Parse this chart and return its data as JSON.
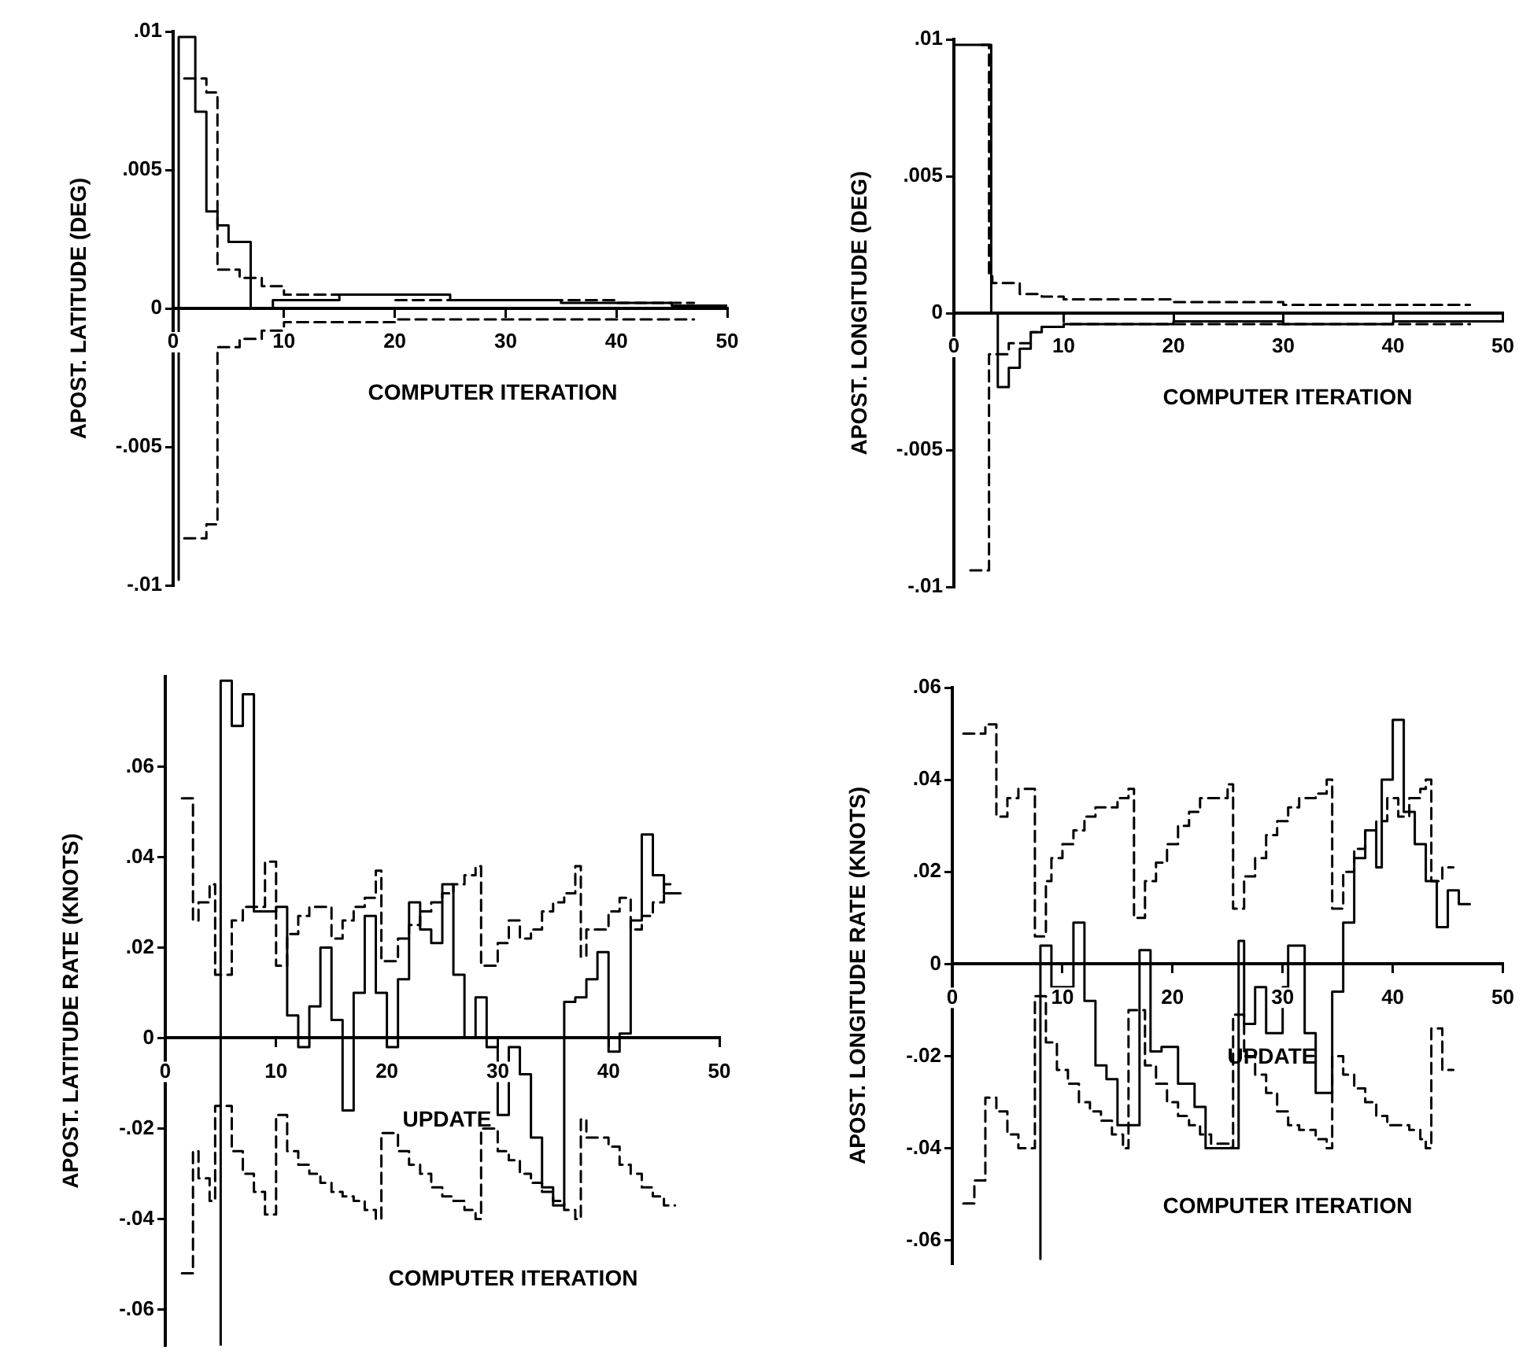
{
  "chart_data": [
    {
      "type": "step",
      "xlabel": "COMPUTER ITERATION",
      "ylabel": "APOST. LATITUDE (DEG)",
      "xlim": [
        0,
        50
      ],
      "ylim": [
        -0.01,
        0.01
      ],
      "xticks": [
        0,
        10,
        20,
        30,
        40,
        50
      ],
      "yticks": [
        {
          "value": -0.01,
          "label": "-.01"
        },
        {
          "value": -0.005,
          "label": "-.005"
        },
        {
          "value": 0,
          "label": "0"
        },
        {
          "value": 0.005,
          "label": ".005"
        },
        {
          "value": 0.01,
          "label": ".01"
        }
      ],
      "series": [
        {
          "color": "#000000",
          "line_style": "solid",
          "x": [
            0.5,
            0.5,
            2,
            3,
            4,
            5,
            7,
            9,
            15,
            25,
            35,
            45,
            50
          ],
          "values": [
            -0.0098,
            0.0098,
            0.0071,
            0.0035,
            0.003,
            0.0024,
            0,
            0.0003,
            0.0005,
            0.0003,
            0.0002,
            0.0001,
            0
          ]
        },
        {
          "color": "#000000",
          "line_style": "dashed",
          "x": [
            1,
            3,
            4,
            6,
            8,
            10,
            20,
            30,
            40,
            47
          ],
          "values": [
            0.0083,
            0.0078,
            0.0014,
            0.0011,
            0.0008,
            0.0005,
            0.0003,
            0.0003,
            0.0002,
            0.0002
          ]
        },
        {
          "color": "#000000",
          "line_style": "dashed",
          "x": [
            1,
            3,
            4,
            6,
            8,
            10,
            20,
            30,
            40,
            47
          ],
          "values": [
            -0.0083,
            -0.0078,
            -0.0014,
            -0.0011,
            -0.0008,
            -0.0005,
            -0.0004,
            -0.0004,
            -0.0004,
            -0.0004
          ]
        }
      ]
    },
    {
      "type": "step",
      "xlabel": "COMPUTER ITERATION",
      "ylabel": "APOST. LONGITUDE (DEG)",
      "xlim": [
        0,
        50
      ],
      "ylim": [
        -0.01,
        0.01
      ],
      "xticks": [
        0,
        10,
        20,
        30,
        40,
        50
      ],
      "yticks": [
        {
          "value": -0.01,
          "label": "-.01"
        },
        {
          "value": -0.005,
          "label": "-.005"
        },
        {
          "value": 0,
          "label": "0"
        },
        {
          "value": 0.005,
          "label": ".005"
        },
        {
          "value": 0.01,
          "label": ".01"
        }
      ],
      "series": [
        {
          "color": "#000000",
          "line_style": "solid",
          "x": [
            0,
            0,
            3.4,
            4,
            5,
            6,
            7,
            8,
            10,
            20,
            30,
            40,
            50
          ],
          "values": [
            -0.0098,
            0.0098,
            0,
            -0.0027,
            -0.002,
            -0.0013,
            -0.0007,
            -0.0005,
            -0.0004,
            -0.0003,
            -0.0004,
            -0.0003,
            -0.0002
          ]
        },
        {
          "color": "#000000",
          "line_style": "dashed",
          "x": [
            2.5,
            3.2,
            3.5,
            6,
            8,
            10,
            20,
            30,
            47
          ],
          "values": [
            0.0098,
            0.0014,
            0.0011,
            0.0007,
            0.0006,
            0.0005,
            0.0004,
            0.0003,
            0.0003
          ]
        },
        {
          "color": "#000000",
          "line_style": "dashed",
          "x": [
            1.5,
            3.2,
            5,
            7,
            8,
            10,
            20,
            30,
            47
          ],
          "values": [
            -0.0094,
            -0.0015,
            -0.0011,
            -0.0007,
            -0.0005,
            -0.0004,
            -0.0004,
            -0.0004,
            -0.0004
          ]
        }
      ]
    },
    {
      "type": "step",
      "xlabel": "COMPUTER ITERATION",
      "ylabel": "APOST. LATITUDE RATE (KNOTS)",
      "xlim": [
        0,
        50
      ],
      "ylim": [
        -0.068,
        0.08
      ],
      "xticks": [
        0,
        10,
        20,
        30,
        40,
        50
      ],
      "yticks": [
        {
          "value": -0.06,
          "label": "-.06"
        },
        {
          "value": -0.04,
          "label": "-.04"
        },
        {
          "value": -0.02,
          "label": "-.02"
        },
        {
          "value": 0,
          "label": "0"
        },
        {
          "value": 0.02,
          "label": ".02"
        },
        {
          "value": 0.04,
          "label": ".04"
        },
        {
          "value": 0.06,
          "label": ".06"
        }
      ],
      "annotations": [
        "UPDATE"
      ],
      "series": [
        {
          "color": "#000000",
          "line_style": "solid",
          "x": [
            5,
            5,
            6,
            7,
            8,
            10,
            11,
            12,
            13,
            14,
            15,
            16,
            17,
            18,
            19,
            20,
            21,
            22,
            23,
            24,
            25,
            26,
            27,
            28,
            29,
            30,
            31,
            32,
            33,
            34,
            35,
            36,
            37,
            38,
            39,
            40,
            41,
            42,
            43,
            44,
            45,
            46.5
          ],
          "values": [
            -0.068,
            0.079,
            0.069,
            0.076,
            0.028,
            0.029,
            0.005,
            -0.002,
            0.007,
            0.02,
            0.004,
            -0.016,
            0.01,
            0.027,
            0.01,
            -0.002,
            0.013,
            0.03,
            0.024,
            0.021,
            0.034,
            0.014,
            0,
            0.009,
            -0.002,
            -0.017,
            -0.002,
            -0.008,
            -0.022,
            -0.033,
            -0.037,
            0.008,
            0.009,
            0.013,
            0.019,
            -0.003,
            0.001,
            0.026,
            0.045,
            0.036,
            0.032,
            0.032
          ]
        },
        {
          "color": "#000000",
          "line_style": "dashed",
          "x": [
            1.5,
            2.5,
            3,
            4,
            4.5,
            6,
            7,
            9,
            10,
            11,
            12,
            13,
            15,
            16,
            17,
            18,
            19,
            19.5,
            21,
            22,
            23,
            24,
            25,
            26,
            27,
            28,
            28.5,
            30,
            31,
            32,
            33,
            34,
            35,
            36,
            37,
            37.5,
            38,
            40,
            41,
            42,
            43,
            44,
            45,
            46
          ],
          "values": [
            0.053,
            0.026,
            0.03,
            0.034,
            0.014,
            0.026,
            0.029,
            0.039,
            0.016,
            0.023,
            0.027,
            0.029,
            0.022,
            0.026,
            0.029,
            0.031,
            0.037,
            0.017,
            0.022,
            0.025,
            0.028,
            0.03,
            0.032,
            0.034,
            0.036,
            0.038,
            0.016,
            0.021,
            0.026,
            0.022,
            0.024,
            0.028,
            0.03,
            0.032,
            0.038,
            0.018,
            0.024,
            0.028,
            0.031,
            0.024,
            0.027,
            0.03,
            0.034,
            0.034
          ]
        },
        {
          "color": "#000000",
          "line_style": "dashed",
          "x": [
            1.5,
            2.5,
            3,
            4,
            4.5,
            6,
            7,
            8,
            9,
            10,
            11,
            12,
            13,
            14,
            15,
            16,
            17,
            18,
            19,
            19.5,
            21,
            22,
            23,
            24,
            25,
            26,
            27,
            28,
            28.5,
            30,
            31,
            32,
            33,
            34,
            35,
            36,
            37,
            37.5,
            38,
            40,
            41,
            42,
            43,
            44,
            45,
            46
          ],
          "values": [
            -0.052,
            -0.025,
            -0.031,
            -0.036,
            -0.015,
            -0.025,
            -0.03,
            -0.034,
            -0.039,
            -0.017,
            -0.025,
            -0.028,
            -0.03,
            -0.032,
            -0.034,
            -0.035,
            -0.036,
            -0.038,
            -0.04,
            -0.021,
            -0.025,
            -0.028,
            -0.03,
            -0.033,
            -0.035,
            -0.036,
            -0.038,
            -0.04,
            -0.02,
            -0.025,
            -0.027,
            -0.03,
            -0.032,
            -0.034,
            -0.036,
            -0.038,
            -0.04,
            -0.018,
            -0.022,
            -0.024,
            -0.028,
            -0.03,
            -0.033,
            -0.035,
            -0.037,
            -0.037
          ]
        }
      ]
    },
    {
      "type": "step",
      "xlabel": "COMPUTER ITERATION",
      "ylabel": "APOST. LONGITUDE RATE (KNOTS)",
      "xlim": [
        0,
        50
      ],
      "ylim": [
        -0.065,
        0.06
      ],
      "xticks": [
        0,
        10,
        20,
        30,
        40,
        50
      ],
      "yticks": [
        {
          "value": -0.06,
          "label": "-.06"
        },
        {
          "value": -0.04,
          "label": "-.04"
        },
        {
          "value": -0.02,
          "label": "-.02"
        },
        {
          "value": 0,
          "label": "0"
        },
        {
          "value": 0.02,
          "label": ".02"
        },
        {
          "value": 0.04,
          "label": ".04"
        },
        {
          "value": 0.06,
          "label": ".06"
        }
      ],
      "annotations": [
        "UPDATE"
      ],
      "series": [
        {
          "color": "#000000",
          "line_style": "solid",
          "x": [
            8,
            8,
            9,
            11,
            12,
            13,
            14,
            15,
            17,
            18,
            19,
            20.5,
            22,
            23,
            26,
            26.5,
            27.5,
            28.5,
            30,
            30.5,
            32,
            33,
            34.5,
            35.5,
            36.5,
            37.5,
            38.5,
            39,
            40,
            41,
            42,
            43,
            44,
            45,
            46,
            47
          ],
          "values": [
            -0.064,
            0.004,
            -0.005,
            0.009,
            -0.008,
            -0.022,
            -0.025,
            -0.035,
            0.003,
            -0.019,
            -0.018,
            -0.026,
            -0.031,
            -0.04,
            0.005,
            -0.013,
            -0.005,
            -0.015,
            -0.005,
            0.004,
            -0.015,
            -0.028,
            -0.006,
            0.009,
            0.023,
            0.029,
            0.021,
            0.04,
            0.053,
            0.033,
            0.026,
            0.018,
            0.008,
            0.016,
            0.013,
            0.013
          ]
        },
        {
          "color": "#000000",
          "line_style": "dashed",
          "x": [
            1,
            3,
            4,
            5,
            6,
            7.5,
            8.5,
            9,
            10,
            11,
            12,
            13,
            15,
            16,
            16.5,
            17.5,
            18.5,
            19.5,
            20.5,
            21.5,
            22.5,
            25,
            25.5,
            26.5,
            27.5,
            28.5,
            29.5,
            30.5,
            31.5,
            33,
            34,
            34.5,
            35.5,
            36.5,
            37.5,
            38.5,
            39.5,
            40.5,
            41.5,
            42.5,
            43,
            43.5,
            44.5,
            45.5
          ],
          "values": [
            0.05,
            0.052,
            0.032,
            0.036,
            0.038,
            0.006,
            0.018,
            0.023,
            0.026,
            0.029,
            0.032,
            0.034,
            0.036,
            0.038,
            0.01,
            0.018,
            0.022,
            0.026,
            0.03,
            0.033,
            0.036,
            0.039,
            0.012,
            0.019,
            0.023,
            0.028,
            0.031,
            0.034,
            0.036,
            0.037,
            0.04,
            0.012,
            0.02,
            0.025,
            0.029,
            0.031,
            0.036,
            0.032,
            0.036,
            0.038,
            0.04,
            0.018,
            0.021,
            0.021
          ]
        },
        {
          "color": "#000000",
          "line_style": "dashed",
          "x": [
            1,
            2,
            3,
            4,
            5,
            6,
            7.5,
            8.5,
            9.5,
            10.5,
            11.5,
            12.5,
            13.5,
            14.5,
            15.5,
            16,
            17.5,
            18.5,
            19.5,
            20.5,
            21.5,
            22.5,
            23.5,
            25.3,
            25.5,
            26.5,
            27.5,
            28.5,
            29.5,
            30.5,
            31.5,
            33,
            34,
            34.5,
            35.5,
            36.5,
            37.5,
            38.5,
            39.5,
            40.5,
            41.5,
            42.5,
            43,
            43.5,
            44.5,
            45.5
          ],
          "values": [
            -0.052,
            -0.047,
            -0.029,
            -0.032,
            -0.037,
            -0.04,
            -0.007,
            -0.017,
            -0.023,
            -0.026,
            -0.03,
            -0.032,
            -0.034,
            -0.037,
            -0.04,
            -0.01,
            -0.022,
            -0.026,
            -0.03,
            -0.033,
            -0.035,
            -0.037,
            -0.039,
            -0.04,
            -0.011,
            -0.02,
            -0.024,
            -0.028,
            -0.032,
            -0.035,
            -0.036,
            -0.038,
            -0.04,
            -0.02,
            -0.024,
            -0.027,
            -0.03,
            -0.033,
            -0.035,
            -0.035,
            -0.036,
            -0.038,
            -0.04,
            -0.014,
            -0.023,
            -0.023
          ]
        }
      ]
    }
  ]
}
